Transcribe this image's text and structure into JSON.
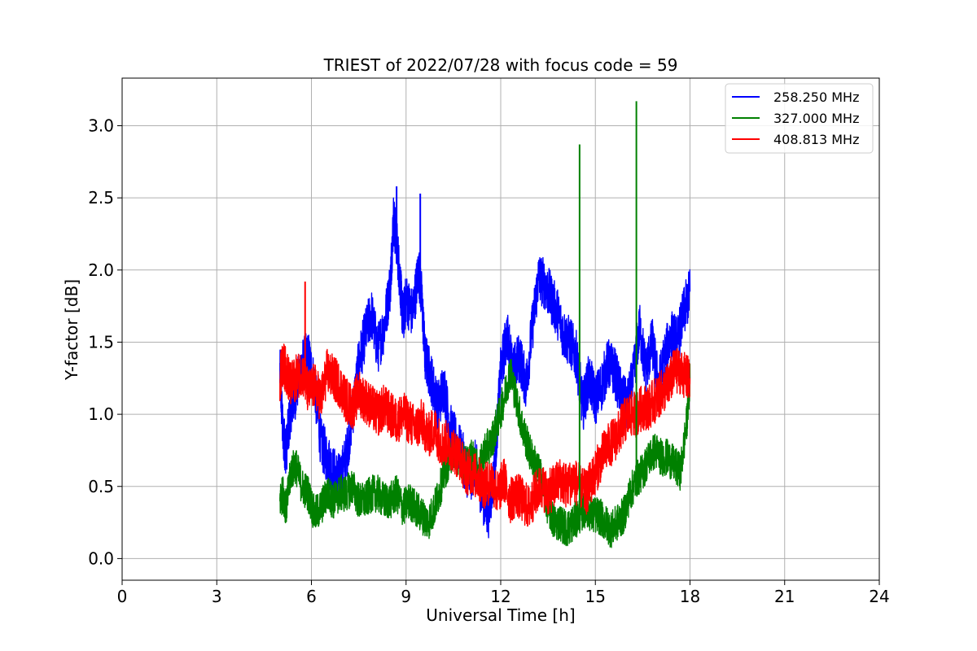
{
  "chart_data": {
    "type": "line",
    "title": "TRIEST of 2022/07/28 with focus code = 59",
    "xlabel": "Universal Time [h]",
    "ylabel": "Y-factor [dB]",
    "xlim": [
      0,
      24
    ],
    "ylim": [
      -0.15,
      3.33
    ],
    "xticks": [
      0,
      3,
      6,
      9,
      12,
      15,
      18,
      21,
      24
    ],
    "xtick_labels": [
      "0",
      "3",
      "6",
      "9",
      "12",
      "15",
      "18",
      "21",
      "24"
    ],
    "yticks": [
      0.0,
      0.5,
      1.0,
      1.5,
      2.0,
      2.5,
      3.0
    ],
    "ytick_labels": [
      "0.0",
      "0.5",
      "1.0",
      "1.5",
      "2.0",
      "2.5",
      "3.0"
    ],
    "grid": true,
    "legend_position": "top-right",
    "series": [
      {
        "name": "258.250 MHz",
        "color": "#0000ff",
        "x": [
          5.0,
          5.1,
          5.2,
          5.35,
          5.5,
          5.7,
          5.9,
          6.1,
          6.3,
          6.5,
          6.7,
          6.9,
          7.1,
          7.3,
          7.5,
          7.7,
          7.9,
          8.1,
          8.3,
          8.5,
          8.6,
          8.7,
          8.8,
          8.9,
          9.0,
          9.2,
          9.4,
          9.5,
          9.6,
          9.8,
          10.0,
          10.2,
          10.4,
          10.6,
          10.8,
          11.0,
          11.2,
          11.4,
          11.6,
          11.8,
          12.0,
          12.2,
          12.4,
          12.6,
          12.8,
          13.0,
          13.2,
          13.4,
          13.6,
          13.8,
          14.0,
          14.2,
          14.4,
          14.6,
          14.8,
          15.0,
          15.2,
          15.4,
          15.6,
          15.8,
          16.0,
          16.2,
          16.4,
          16.6,
          16.8,
          17.0,
          17.2,
          17.4,
          17.6,
          17.8,
          18.0
        ],
        "y": [
          1.3,
          0.85,
          0.75,
          1.05,
          1.15,
          1.35,
          1.4,
          1.2,
          0.8,
          0.7,
          0.6,
          0.55,
          0.7,
          1.0,
          1.35,
          1.55,
          1.7,
          1.45,
          1.6,
          1.9,
          2.35,
          2.2,
          1.95,
          1.65,
          1.8,
          1.7,
          2.0,
          1.8,
          1.4,
          1.25,
          1.05,
          1.2,
          0.9,
          0.8,
          0.7,
          0.55,
          0.65,
          0.45,
          0.3,
          0.6,
          1.3,
          1.55,
          1.3,
          1.4,
          1.2,
          1.6,
          1.95,
          1.9,
          1.8,
          1.7,
          1.55,
          1.5,
          1.4,
          1.05,
          1.25,
          1.1,
          1.2,
          1.35,
          1.3,
          1.15,
          1.05,
          1.25,
          1.6,
          1.3,
          1.5,
          1.2,
          1.4,
          1.55,
          1.5,
          1.7,
          1.85
        ]
      },
      {
        "name": "327.000 MHz",
        "color": "#008000",
        "x": [
          5.0,
          5.1,
          5.2,
          5.35,
          5.5,
          5.7,
          5.9,
          6.1,
          6.3,
          6.5,
          6.7,
          6.9,
          7.1,
          7.3,
          7.5,
          7.7,
          7.9,
          8.1,
          8.3,
          8.5,
          8.7,
          8.9,
          9.1,
          9.3,
          9.5,
          9.7,
          9.9,
          10.1,
          10.3,
          10.5,
          10.7,
          10.9,
          11.1,
          11.3,
          11.5,
          11.7,
          11.9,
          12.1,
          12.3,
          12.5,
          12.7,
          12.9,
          13.1,
          13.3,
          13.5,
          13.7,
          13.9,
          14.1,
          14.3,
          14.5,
          14.7,
          14.9,
          15.1,
          15.3,
          15.5,
          15.7,
          15.9,
          16.1,
          16.3,
          16.5,
          16.7,
          16.9,
          17.1,
          17.3,
          17.5,
          17.7,
          17.9,
          18.0
        ],
        "y": [
          0.4,
          0.45,
          0.35,
          0.6,
          0.65,
          0.5,
          0.45,
          0.3,
          0.35,
          0.45,
          0.4,
          0.45,
          0.45,
          0.5,
          0.4,
          0.4,
          0.45,
          0.45,
          0.4,
          0.4,
          0.45,
          0.35,
          0.4,
          0.35,
          0.3,
          0.25,
          0.35,
          0.5,
          0.65,
          0.75,
          0.7,
          0.65,
          0.7,
          0.6,
          0.75,
          0.8,
          0.95,
          1.1,
          1.3,
          1.1,
          0.9,
          0.75,
          0.65,
          0.55,
          0.35,
          0.25,
          0.25,
          0.2,
          0.25,
          0.3,
          0.35,
          0.3,
          0.3,
          0.25,
          0.2,
          0.25,
          0.3,
          0.45,
          0.55,
          0.6,
          0.7,
          0.75,
          0.7,
          0.7,
          0.65,
          0.6,
          0.95,
          1.25
        ]
      },
      {
        "name": "408.813 MHz",
        "color": "#ff0000",
        "x": [
          5.0,
          5.1,
          5.2,
          5.35,
          5.5,
          5.7,
          5.9,
          6.1,
          6.3,
          6.5,
          6.7,
          6.9,
          7.1,
          7.3,
          7.5,
          7.7,
          7.9,
          8.1,
          8.3,
          8.5,
          8.7,
          8.9,
          9.1,
          9.3,
          9.5,
          9.7,
          9.9,
          10.1,
          10.3,
          10.5,
          10.7,
          10.9,
          11.1,
          11.3,
          11.5,
          11.7,
          11.9,
          12.1,
          12.3,
          12.5,
          12.7,
          12.9,
          13.1,
          13.3,
          13.5,
          13.7,
          13.9,
          14.1,
          14.3,
          14.5,
          14.7,
          14.9,
          15.1,
          15.3,
          15.5,
          15.7,
          15.9,
          16.1,
          16.3,
          16.5,
          16.7,
          16.9,
          17.1,
          17.3,
          17.5,
          17.7,
          17.9,
          18.0
        ],
        "y": [
          1.25,
          1.35,
          1.3,
          1.2,
          1.25,
          1.3,
          1.15,
          1.2,
          1.1,
          1.3,
          1.25,
          1.2,
          1.1,
          1.05,
          1.15,
          1.1,
          1.05,
          1.0,
          1.05,
          1.0,
          0.95,
          1.0,
          0.95,
          0.9,
          0.95,
          0.85,
          0.9,
          0.8,
          0.8,
          0.75,
          0.7,
          0.6,
          0.6,
          0.55,
          0.5,
          0.55,
          0.45,
          0.55,
          0.4,
          0.45,
          0.4,
          0.35,
          0.45,
          0.5,
          0.45,
          0.5,
          0.55,
          0.5,
          0.55,
          0.5,
          0.45,
          0.55,
          0.65,
          0.75,
          0.8,
          0.85,
          0.95,
          1.0,
          1.0,
          1.05,
          1.05,
          1.1,
          1.15,
          1.2,
          1.3,
          1.3,
          1.25,
          1.25
        ]
      }
    ],
    "spikes": [
      {
        "series": "327.000 MHz",
        "x": 14.5,
        "y": 2.87
      },
      {
        "series": "327.000 MHz",
        "x": 16.3,
        "y": 3.17
      },
      {
        "series": "258.250 MHz",
        "x": 8.7,
        "y": 2.58
      },
      {
        "series": "258.250 MHz",
        "x": 9.45,
        "y": 2.53
      },
      {
        "series": "408.813 MHz",
        "x": 5.8,
        "y": 1.92
      }
    ]
  }
}
